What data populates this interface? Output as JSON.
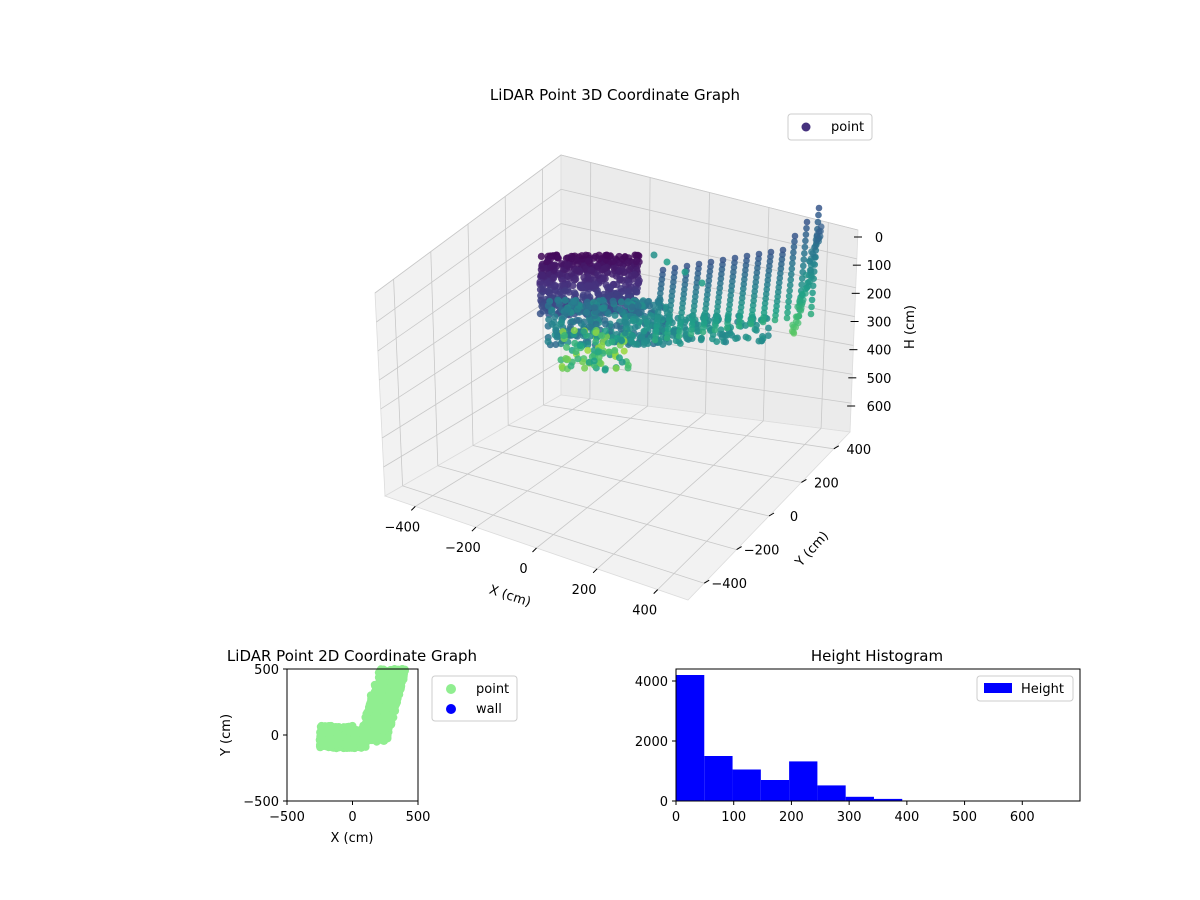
{
  "chart_data": [
    {
      "type": "scatter",
      "projection": "3d",
      "title": "LiDAR Point 3D Coordinate Graph",
      "xlabel": "X (cm)",
      "ylabel": "Y (cm)",
      "zlabel": "H (cm)",
      "xlim": [
        -500,
        500
      ],
      "ylim": [
        -500,
        500
      ],
      "zlim": [
        0,
        700
      ],
      "z_inverted": true,
      "x_ticks": [
        "−400",
        "−200",
        "0",
        "200",
        "400"
      ],
      "y_ticks": [
        "−400",
        "−200",
        "0",
        "200",
        "400"
      ],
      "z_ticks": [
        "0",
        "100",
        "200",
        "300",
        "400",
        "500",
        "600"
      ],
      "grid": true,
      "colormap": "viridis",
      "legend": {
        "position": "top-right",
        "entries": [
          {
            "label": "point",
            "color": "#46327e"
          }
        ]
      },
      "series": [
        {
          "name": "point",
          "clusters": [
            {
              "desc": "dense block near origin",
              "x": [
                -120,
                60
              ],
              "y": [
                -60,
                60
              ],
              "h": [
                0,
                300
              ]
            },
            {
              "desc": "lower trail",
              "x": [
                -200,
                -60
              ],
              "y": [
                -80,
                0
              ],
              "h": [
                300,
                420
              ]
            },
            {
              "desc": "arc of ribs",
              "x": [
                60,
                420
              ],
              "y": [
                0,
                480
              ],
              "h": [
                0,
                330
              ]
            }
          ]
        }
      ]
    },
    {
      "type": "scatter",
      "title": "LiDAR Point 2D Coordinate Graph",
      "xlabel": "X (cm)",
      "ylabel": "Y (cm)",
      "xlim": [
        -500,
        500
      ],
      "ylim": [
        -500,
        500
      ],
      "x_ticks": [
        "−500",
        "0",
        "500"
      ],
      "y_ticks": [
        "−500",
        "0",
        "500"
      ],
      "legend": {
        "position": "right",
        "entries": [
          {
            "label": "point",
            "color": "#90ee90"
          },
          {
            "label": "wall",
            "color": "#0000ff"
          }
        ]
      },
      "series": [
        {
          "name": "point",
          "color": "#90ee90",
          "x": [
            -250,
            -220,
            -180,
            -150,
            -100,
            -50,
            0,
            40,
            80,
            100,
            130,
            160,
            180,
            200,
            230,
            260,
            290,
            320,
            350,
            380,
            200,
            250,
            300,
            350,
            150,
            120,
            60,
            20,
            -120,
            -200,
            -240,
            170,
            220,
            280,
            330,
            390,
            140,
            190,
            240,
            310,
            360,
            100,
            150,
            210
          ],
          "y": [
            -40,
            -60,
            -50,
            -70,
            -60,
            -80,
            -50,
            -40,
            -30,
            0,
            30,
            80,
            150,
            220,
            280,
            350,
            420,
            470,
            490,
            500,
            100,
            170,
            250,
            330,
            200,
            100,
            20,
            -20,
            10,
            20,
            -10,
            380,
            420,
            450,
            480,
            440,
            300,
            330,
            400,
            400,
            420,
            50,
            250,
            320
          ]
        },
        {
          "name": "wall",
          "color": "#0000ff",
          "x": [],
          "y": []
        }
      ]
    },
    {
      "type": "bar",
      "subtype": "histogram",
      "title": "Height Histogram",
      "xlabel": "",
      "ylabel": "",
      "xlim": [
        0,
        700
      ],
      "ylim": [
        0,
        4400
      ],
      "x_ticks": [
        "0",
        "100",
        "200",
        "300",
        "400",
        "500",
        "600"
      ],
      "y_ticks": [
        "0",
        "2000",
        "4000"
      ],
      "legend": {
        "position": "top-right",
        "entries": [
          {
            "label": "Height",
            "color": "#0000ff"
          }
        ]
      },
      "series": [
        {
          "name": "Height",
          "color": "#0000ff",
          "bin_edges": [
            0,
            49,
            98,
            147,
            196,
            245,
            294,
            343,
            392,
            441,
            490,
            539,
            588,
            637,
            686
          ],
          "counts": [
            4200,
            1500,
            1050,
            700,
            1320,
            520,
            140,
            70,
            8,
            5,
            3,
            2,
            2,
            1
          ]
        }
      ]
    }
  ]
}
